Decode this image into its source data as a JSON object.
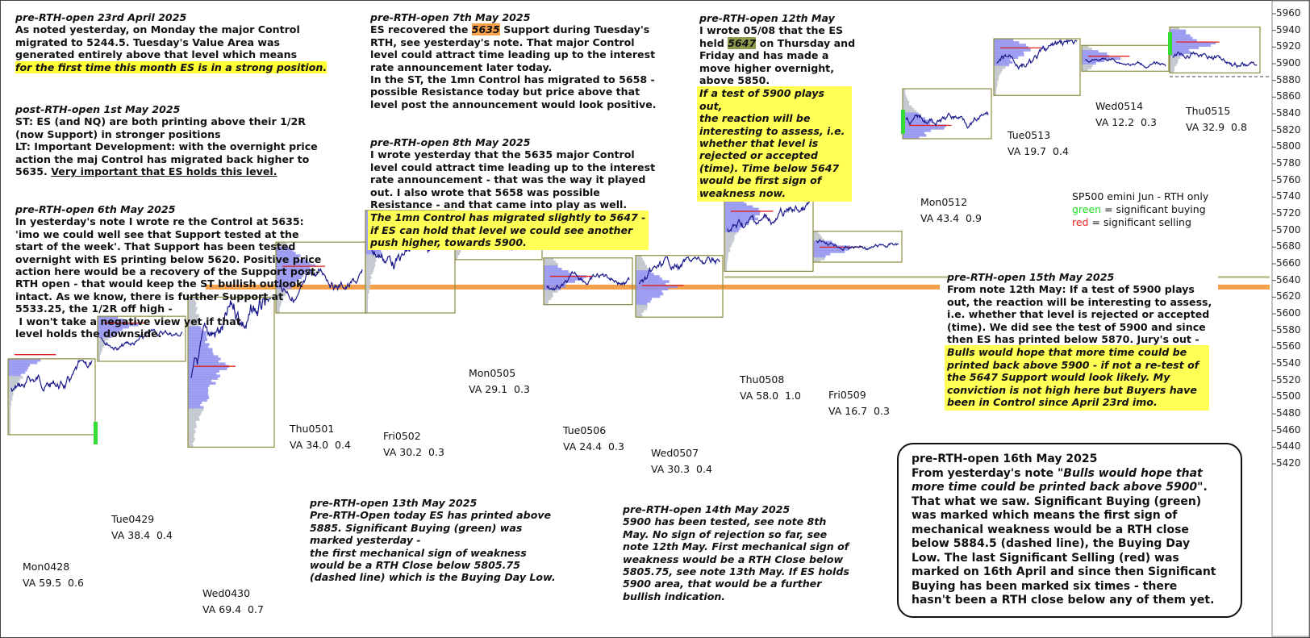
{
  "chart_data": {
    "type": "market-profile",
    "title": "SP500 emini  Jun - RTH only",
    "legend": [
      {
        "label": "green",
        "text": " = significant buying",
        "color": "#22dd22"
      },
      {
        "label": "red",
        "text": " = significant selling",
        "color": "#ee2222"
      }
    ],
    "y_axis": {
      "side": "right",
      "ticks": [
        5420,
        5440,
        5460,
        5480,
        5500,
        5520,
        5540,
        5560,
        5580,
        5600,
        5620,
        5640,
        5660,
        5680,
        5700,
        5720,
        5740,
        5760,
        5780,
        5800,
        5820,
        5840,
        5860,
        5880,
        5900,
        5920,
        5940,
        5960
      ]
    },
    "ylim": [
      5410,
      5970
    ],
    "support_level": 5635,
    "dashed_level": 5884.5,
    "sessions": [
      {
        "label": "Mon0428",
        "va": "VA 59.5  0.6",
        "high": 5546,
        "low": 5455,
        "poc": 5551
      },
      {
        "label": "Tue0429",
        "va": "VA 38.4  0.4",
        "high": 5597,
        "low": 5543,
        "poc": 5589
      },
      {
        "label": "Wed0430",
        "va": "VA 69.4  0.7",
        "high": 5620,
        "low": 5440,
        "poc": 5537
      },
      {
        "label": "Thu0501",
        "va": "VA 34.0  0.4",
        "high": 5686,
        "low": 5601,
        "poc": 5657
      },
      {
        "label": "Fri0502",
        "va": "VA 30.2  0.3",
        "high": 5724,
        "low": 5601,
        "poc": 5707
      },
      {
        "label": "Mon0505",
        "va": "VA 29.1  0.3",
        "high": 5701,
        "low": 5665,
        "poc": 5694
      },
      {
        "label": "Tue0506",
        "va": "VA 24.4  0.3",
        "high": 5667,
        "low": 5611,
        "poc": 5645
      },
      {
        "label": "Wed0507",
        "va": "VA 30.3  0.4",
        "high": 5670,
        "low": 5596,
        "poc": 5634
      },
      {
        "label": "Thu0508",
        "va": "VA 58.0  1.0",
        "high": 5739,
        "low": 5651,
        "poc": 5723
      },
      {
        "label": "Fri0509",
        "va": "VA 16.7  0.3",
        "high": 5699,
        "low": 5662,
        "poc": 5680
      },
      {
        "label": "Mon0512",
        "va": "VA 43.4  0.9",
        "high": 5870,
        "low": 5810,
        "poc": 5826
      },
      {
        "label": "Tue0513",
        "va": "VA 19.7  0.4",
        "high": 5930,
        "low": 5862,
        "poc": 5919
      },
      {
        "label": "Wed0514",
        "va": "VA 12.2  0.3",
        "high": 5922,
        "low": 5891,
        "poc": 5909
      },
      {
        "label": "Thu0515",
        "va": "VA 32.9  0.8",
        "high": 5944,
        "low": 5889,
        "poc": 5926
      }
    ]
  },
  "notes": {
    "n1": {
      "title": "pre-RTH-open 23rd April 2025",
      "lines": [
        "As noted yesterday, on Monday the major Control",
        "migrated to 5244.5. Tuesday's Value Area was",
        "generated entirely above that level which means"
      ],
      "highlight": "for the first time this month ES is in a strong position."
    },
    "n2": {
      "title": "post-RTH-open 1st May 2025",
      "lines": [
        "ST: ES (and NQ) are both printing above their 1/2R",
        "(now Support) in stronger positions",
        "LT: Important Development: with the overnight price",
        "action the maj Control has migrated back higher to"
      ],
      "last_plain": "5635. ",
      "last_underline": "Very important that ES holds this level."
    },
    "n3": {
      "title": "pre-RTH-open 6th May 2025",
      "lines": [
        "In yesterday's note I wrote re the Control at 5635:",
        "'imo we could well see that Support tested at the",
        "start of the week'. That Support has been tested",
        "overnight with ES printing below 5620. Positive price",
        "action here would be a recovery of the Support post-",
        "RTH open - that would keep the ST bullish outlook",
        "intact. As we know, there is further Support at",
        "5533.25, the 1/2R off high -",
        " I won't take a negative view yet if that",
        "level holds the downside."
      ]
    },
    "n4": {
      "title": "pre-RTH-open 7th May 2025",
      "l1a": "ES recovered the ",
      "l1b": "5635",
      "l1c": " Support during Tuesday's",
      "lines": [
        "RTH, see yesterday's note. That major Control",
        "level could attract time leading up to the interest",
        "rate announcement later today.",
        "In the ST, the 1mn Control has migrated to 5658 -",
        "possible Resistance today but price above that",
        "level post the announcement would look positive."
      ]
    },
    "n5": {
      "title": "pre-RTH-open 8th May 2025",
      "lines": [
        "I wrote yesterday that the 5635 major Control",
        "level could attract time leading up to the interest",
        "rate announcement - that was the way it played",
        "out. I also wrote that 5658 was possible",
        "Resistance - and that came into play as well."
      ],
      "box": [
        "The 1mn Control has migrated slightly to 5647 -",
        "if ES can hold that level we could see another",
        "push higher, towards 5900."
      ]
    },
    "n6": {
      "title": "pre-RTH-open 12th May",
      "l1": "I wrote 05/08 that the  ES",
      "l2a": "held ",
      "l2b": "5647",
      "l2c": " on Thursday and",
      "lines": [
        "Friday and has made a",
        "move higher overnight,",
        "above 5850."
      ],
      "box": [
        "If a test of 5900 plays out,",
        "the reaction will be",
        "interesting to assess, i.e.",
        "whether that level is",
        "rejected or accepted",
        "(time). Time below 5647",
        "would be first sign of",
        "weakness now."
      ]
    },
    "n7": {
      "title": "pre-RTH-open 13th May 2025",
      "lines": [
        "Pre-RTH-Open today ES has printed above",
        "5885. Significant Buying (green) was",
        "marked yesterday -",
        "the first mechanical sign of weakness",
        "would be a RTH Close below 5805.75",
        "(dashed line) which is the Buying Day Low."
      ]
    },
    "n8": {
      "title": "pre-RTH-open 14th May 2025",
      "lines": [
        "5900 has been tested, see note 8th",
        "May. No sign of rejection so far, see",
        "note 12th May. First mechanical sign of",
        "weakness would be a RTH Close below",
        "5805.75, see note 13th May. If ES holds",
        "5900 area, that would be a further",
        "bullish indication."
      ]
    },
    "n9": {
      "title": "pre-RTH-open 15th May 2025",
      "lines": [
        "From note 12th May: If a test of 5900 plays",
        "out, the reaction will be interesting to assess,",
        "i.e. whether that level is rejected or accepted",
        "(time). We did see the test of 5900 and since",
        "then ES has printed below 5870. Jury's out -"
      ],
      "box": [
        "Bulls would hope that more time could be",
        "printed back above 5900 - if not a re-test of",
        "the 5647 Support would look likely. My",
        "conviction is not high here but Buyers have",
        "been in Control since April 23rd imo."
      ]
    },
    "n10": {
      "title": "pre-RTH-open 16th May 2025",
      "l1a": "From yesterday's note \"",
      "l1b": "Bulls would hope that",
      "l2a": "more time could be printed back above 5900",
      "l2b": "\".",
      "lines": [
        "That what we saw. Significant Buying (green)",
        "was marked which means the first sign of",
        "mechanical weakness would be a RTH close",
        "below 5884.5 (dashed line), the Buying Day",
        "Low. The last Significant Selling (red) was",
        "marked on 16th April and since then Significant",
        "Buying has been marked six times - there",
        "hasn't been a RTH close below any of them yet."
      ]
    }
  }
}
